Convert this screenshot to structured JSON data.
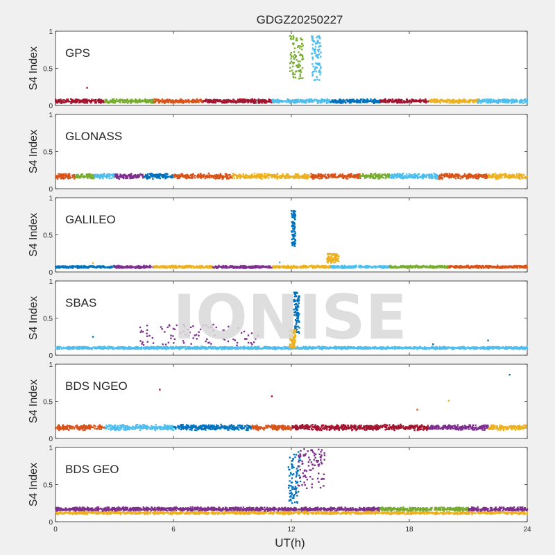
{
  "figure": {
    "title": "GDGZ20250227",
    "xlabel": "UT(h)",
    "ylabel": "S4 Index",
    "watermark": "IONISE"
  },
  "chart_data": {
    "type": "scatter",
    "title": "GDGZ20250227",
    "xlabel": "UT(h)",
    "xlim": [
      0,
      24
    ],
    "xticks": [
      "0",
      "6",
      "12",
      "18",
      "24"
    ],
    "ylim": [
      0,
      1
    ],
    "yticks": [
      "0",
      "0.5",
      "1"
    ],
    "grid": false,
    "legend": "none",
    "palette": [
      "#0072BD",
      "#D95319",
      "#EDB120",
      "#7E2F8E",
      "#77AC30",
      "#4DBEEE",
      "#A2142F"
    ],
    "panels": [
      {
        "label": "GPS",
        "ylabel": "S4 Index",
        "baseline": 0.06,
        "noise": 0.03,
        "color_runs": [
          [
            0,
            2.5,
            6
          ],
          [
            2.5,
            5,
            4
          ],
          [
            5,
            7.5,
            1
          ],
          [
            7.5,
            11,
            6
          ],
          [
            11,
            14,
            5
          ],
          [
            14,
            16.5,
            0
          ],
          [
            16.5,
            19,
            6
          ],
          [
            19,
            21.5,
            2
          ],
          [
            21.5,
            24,
            5
          ]
        ],
        "features": [
          {
            "x": [
              11.9,
              12.6
            ],
            "y": [
              0.35,
              0.95
            ],
            "color": "#77AC30"
          },
          {
            "x": [
              13.0,
              13.5
            ],
            "y": [
              0.3,
              0.95
            ],
            "color": "#4DBEEE"
          }
        ],
        "outliers": [
          {
            "x": 1.6,
            "y": 0.24,
            "color": "#A2142F"
          }
        ]
      },
      {
        "label": "GLONASS",
        "ylabel": "S4 Index",
        "baseline": 0.17,
        "noise": 0.04,
        "color_runs": [
          [
            0,
            1,
            1
          ],
          [
            1,
            2,
            4
          ],
          [
            2,
            3,
            5
          ],
          [
            3,
            4.5,
            3
          ],
          [
            4.5,
            6,
            0
          ],
          [
            6,
            9,
            1
          ],
          [
            9,
            11.5,
            2
          ],
          [
            11.5,
            13,
            2
          ],
          [
            13,
            15.5,
            1
          ],
          [
            15.5,
            17,
            4
          ],
          [
            17,
            19.5,
            5
          ],
          [
            19.5,
            22,
            1
          ],
          [
            22,
            24,
            2
          ]
        ],
        "features": [],
        "outliers": []
      },
      {
        "label": "GALILEO",
        "ylabel": "S4 Index",
        "baseline": 0.07,
        "noise": 0.02,
        "color_runs": [
          [
            0,
            3,
            0
          ],
          [
            3,
            5,
            3
          ],
          [
            5,
            8,
            2
          ],
          [
            8,
            11,
            3
          ],
          [
            11,
            14,
            2
          ],
          [
            14,
            17,
            5
          ],
          [
            17,
            20,
            4
          ],
          [
            20,
            24,
            1
          ]
        ],
        "features": [
          {
            "x": [
              12.0,
              12.2
            ],
            "y": [
              0.35,
              0.85
            ],
            "color": "#0072BD"
          },
          {
            "x": [
              13.8,
              14.4
            ],
            "y": [
              0.12,
              0.25
            ],
            "color": "#EDB120"
          }
        ],
        "outliers": [
          {
            "x": 1.9,
            "y": 0.12,
            "color": "#EDB120"
          },
          {
            "x": 11.4,
            "y": 0.13,
            "color": "#4DBEEE"
          }
        ]
      },
      {
        "label": "SBAS",
        "ylabel": "S4 Index",
        "baseline": 0.1,
        "noise": 0.02,
        "color_runs": [
          [
            0,
            24,
            5
          ]
        ],
        "features": [
          {
            "x": [
              4.0,
              10.5
            ],
            "y": [
              0.12,
              0.42
            ],
            "color": "#7E2F8E"
          },
          {
            "x": [
              12.1,
              12.4
            ],
            "y": [
              0.3,
              0.85
            ],
            "color": "#0072BD"
          },
          {
            "x": [
              11.9,
              12.2
            ],
            "y": [
              0.1,
              0.35
            ],
            "color": "#EDB120"
          }
        ],
        "outliers": [
          {
            "x": 1.9,
            "y": 0.25,
            "color": "#0072BD"
          },
          {
            "x": 19.2,
            "y": 0.15,
            "color": "#0072BD"
          },
          {
            "x": 22,
            "y": 0.2,
            "color": "#0072BD"
          }
        ]
      },
      {
        "label": "BDS NGEO",
        "ylabel": "S4 Index",
        "baseline": 0.15,
        "noise": 0.04,
        "color_runs": [
          [
            0,
            2.5,
            1
          ],
          [
            2.5,
            6,
            5
          ],
          [
            6,
            10,
            0
          ],
          [
            10,
            12,
            1
          ],
          [
            12,
            15,
            6
          ],
          [
            15,
            19,
            6
          ],
          [
            19,
            22,
            3
          ],
          [
            22,
            24,
            2
          ]
        ],
        "features": [],
        "outliers": [
          {
            "x": 5.3,
            "y": 0.66,
            "color": "#A2142F"
          },
          {
            "x": 11.0,
            "y": 0.57,
            "color": "#A2142F"
          },
          {
            "x": 18.4,
            "y": 0.39,
            "color": "#D95319"
          },
          {
            "x": 20.0,
            "y": 0.51,
            "color": "#EDB120"
          },
          {
            "x": 23.1,
            "y": 0.86,
            "color": "#0072BD"
          }
        ]
      },
      {
        "label": "BDS GEO",
        "ylabel": "S4 Index",
        "baseline": 0.17,
        "noise": 0.03,
        "color_runs": [
          [
            0,
            11.5,
            3
          ],
          [
            11.5,
            16.5,
            3
          ],
          [
            16.5,
            21,
            4
          ],
          [
            21,
            24,
            3
          ]
        ],
        "second_band": {
          "baseline": 0.12,
          "noise": 0.02,
          "color": "#EDB120"
        },
        "features": [
          {
            "x": [
              11.8,
              12.5
            ],
            "y": [
              0.25,
              0.95
            ],
            "color": "#0072BD"
          },
          {
            "x": [
              12.3,
              13.7
            ],
            "y": [
              0.45,
              0.98
            ],
            "color": "#7E2F8E"
          }
        ],
        "outliers": []
      }
    ]
  }
}
